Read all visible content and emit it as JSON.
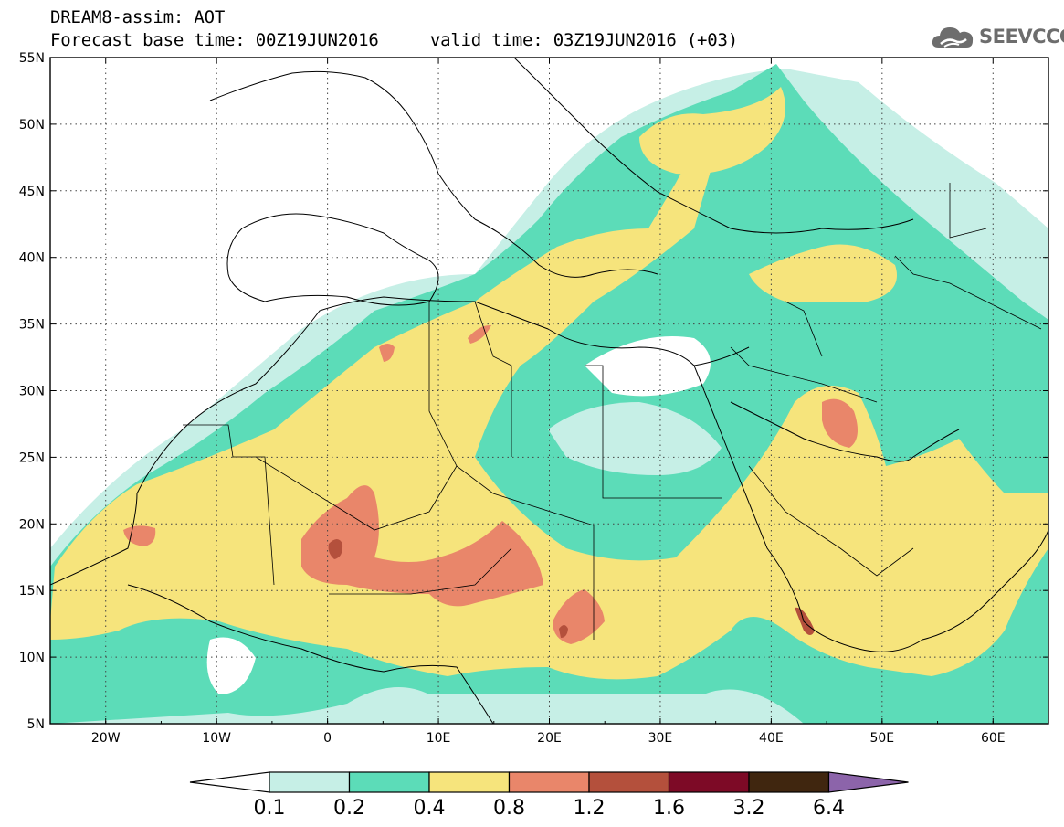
{
  "title": {
    "line1": "DREAM8-assim: AOT",
    "line2": "Forecast base time: 00Z19JUN2016     valid time: 03Z19JUN2016 (+03)"
  },
  "logo": {
    "text": "SEEVCCC",
    "icon": "cloud-icon",
    "color": "#6d6d6d"
  },
  "map": {
    "lon_range": [
      -25,
      65
    ],
    "lat_range": [
      5,
      55
    ],
    "lat_labels": [
      "55N",
      "50N",
      "45N",
      "40N",
      "35N",
      "30N",
      "25N",
      "20N",
      "15N",
      "10N",
      "5N"
    ],
    "lon_labels": [
      "20W",
      "10W",
      "0",
      "10E",
      "20E",
      "30E",
      "40E",
      "50E",
      "60E"
    ]
  },
  "legend": {
    "levels": [
      "0.1",
      "0.2",
      "0.4",
      "0.8",
      "1.2",
      "1.6",
      "3.2",
      "6.4"
    ],
    "colors": [
      "#ffffff",
      "#c6efe6",
      "#5cdcb8",
      "#f6e47c",
      "#e9866a",
      "#b4503c",
      "#7d0a26",
      "#40260f",
      "#8c64aa"
    ]
  }
}
